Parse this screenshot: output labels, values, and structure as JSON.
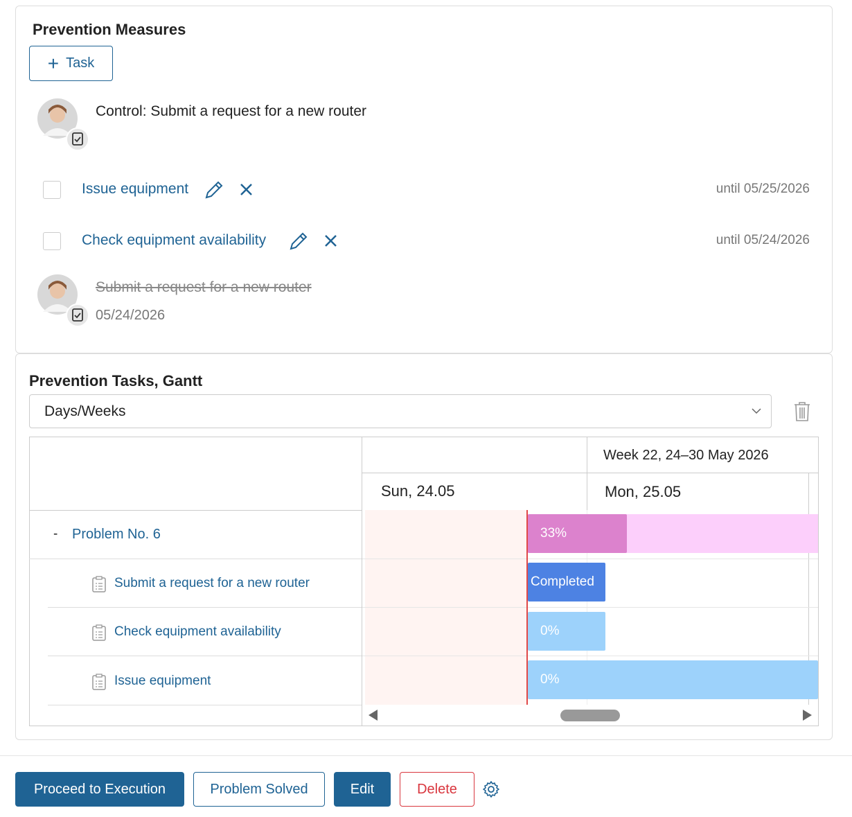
{
  "measures": {
    "title": "Prevention Measures",
    "add_button": "Task",
    "control": "Control: Submit a request for a new router",
    "tasks": [
      {
        "title": "Issue equipment",
        "due": "until 05/25/2026"
      },
      {
        "title": "Check equipment availability",
        "due": "until 05/24/2026"
      }
    ],
    "completed": {
      "title": "Submit a request for a new router",
      "date": "05/24/2026"
    }
  },
  "gantt": {
    "title": "Prevention Tasks, Gantt",
    "scale": "Days/Weeks",
    "week": "Week 22, 24–30 May 2026",
    "days": [
      "Sun, 24.05",
      "Mon, 25.05"
    ],
    "rows": [
      {
        "toggle": "-",
        "label": "Problem No. 6",
        "bar": "33%"
      },
      {
        "label": "Submit a request for a new router",
        "bar": "Completed"
      },
      {
        "label": "Check equipment availability",
        "bar": "0%"
      },
      {
        "label": "Issue equipment",
        "bar": "0%"
      }
    ]
  },
  "actions": [
    "Proceed to Execution",
    "Problem Solved",
    "Edit",
    "Delete"
  ]
}
